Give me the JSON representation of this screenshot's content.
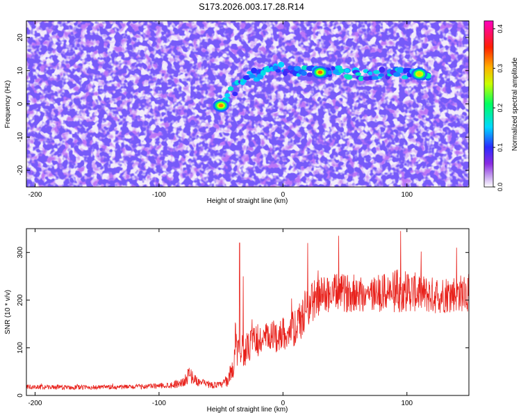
{
  "title": "S173.2026.003.17.28.R14",
  "colors": {
    "snr_line": "#e8201a",
    "colorbar_stops": [
      "#ffffff",
      "#8a2be2",
      "#0000ff",
      "#00ffff",
      "#00ff00",
      "#ffff00",
      "#ff8000",
      "#ff0000",
      "#ff00ff"
    ]
  },
  "chart_data": [
    {
      "type": "heatmap",
      "title": "",
      "xlabel": "Height of straight line (km)",
      "ylabel": "Frequency (Hz)",
      "xlim": [
        -207,
        150
      ],
      "ylim": [
        -25,
        25
      ],
      "x_ticks": [
        -200,
        -100,
        0,
        100
      ],
      "x_tick_labels": [
        "-200",
        "-100",
        "0",
        "100"
      ],
      "y_ticks": [
        -20,
        -10,
        0,
        10,
        20
      ],
      "y_tick_labels": [
        "-20",
        "-10",
        "0",
        "10",
        "20"
      ],
      "colorbar": {
        "label": "Normalized spectral amplitude",
        "range": [
          0,
          0.42
        ],
        "ticks": [
          0.0,
          0.1,
          0.2,
          0.3,
          0.4
        ],
        "tick_labels": [
          "0.0",
          "0.1",
          "0.2",
          "0.3",
          "0.4"
        ],
        "colormap": "white-purple-blue-cyan-green-yellow-orange-red-magenta"
      },
      "features": [
        {
          "description": "signal track",
          "x": [
            -50,
            -40,
            -30,
            -20,
            -10,
            0,
            10,
            20,
            30,
            40,
            50,
            60,
            70,
            80,
            90,
            100,
            110,
            120
          ],
          "y": [
            0,
            4,
            8,
            9,
            10,
            10.5,
            10,
            9.5,
            9.5,
            9.5,
            9.5,
            9,
            9,
            9,
            9.5,
            9,
            9,
            9
          ]
        },
        {
          "description": "peak",
          "x": 30,
          "y": 9.5,
          "amplitude": 0.33
        },
        {
          "description": "peak",
          "x": 110,
          "y": 9,
          "amplitude": 0.28
        },
        {
          "description": "peak",
          "x": -50,
          "y": -0.5,
          "amplitude": 0.32
        }
      ]
    },
    {
      "type": "line",
      "title": "",
      "xlabel": "Height of straight line (km)",
      "ylabel": "SNR (10 * v/v)",
      "xlim": [
        -207,
        150
      ],
      "ylim": [
        0,
        350
      ],
      "x_ticks": [
        -200,
        -100,
        0,
        100
      ],
      "x_tick_labels": [
        "-200",
        "-100",
        "0",
        "100"
      ],
      "y_ticks": [
        0,
        100,
        200,
        300
      ],
      "y_tick_labels": [
        "0",
        "100",
        "200",
        "300"
      ],
      "series": [
        {
          "values_profile": {
            "x": [
              -207,
              -180,
              -150,
              -120,
              -100,
              -90,
              -80,
              -75,
              -70,
              -60,
              -50,
              -45,
              -40,
              -38,
              -35,
              -30,
              -25,
              -20,
              -10,
              0,
              10,
              15,
              20,
              25,
              30,
              40,
              50,
              60,
              70,
              80,
              90,
              100,
              110,
              120,
              130,
              140,
              150
            ],
            "y": [
              18,
              17,
              17,
              18,
              20,
              22,
              28,
              45,
              30,
              22,
              22,
              30,
              60,
              120,
              100,
              90,
              110,
              115,
              120,
              130,
              140,
              160,
              190,
              200,
              210,
              215,
              215,
              215,
              212,
              215,
              218,
              220,
              215,
              210,
              212,
              215,
              215
            ]
          },
          "noise_amplitude": [
            5,
            5,
            5,
            5,
            6,
            7,
            10,
            18,
            10,
            7,
            7,
            12,
            25,
            60,
            35,
            30,
            35,
            35,
            35,
            35,
            40,
            45,
            45,
            45,
            40,
            40,
            40,
            40,
            40,
            40,
            45,
            45,
            40,
            40,
            40,
            40,
            40
          ],
          "spikes": [
            {
              "x": -35,
              "y": 320
            },
            {
              "x": -32,
              "y": 250
            },
            {
              "x": 20,
              "y": 320
            },
            {
              "x": 45,
              "y": 335
            },
            {
              "x": 95,
              "y": 345
            },
            {
              "x": 140,
              "y": 310
            }
          ]
        }
      ]
    }
  ]
}
